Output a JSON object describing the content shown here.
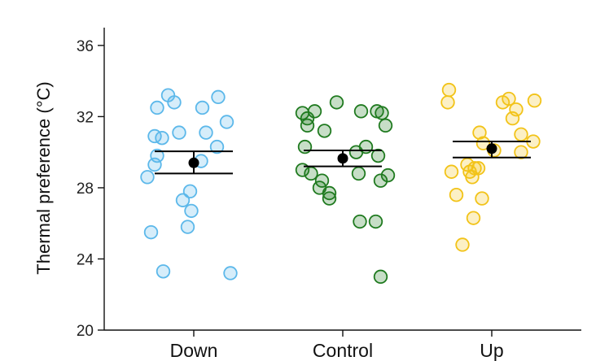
{
  "chart_data": {
    "type": "scatter",
    "ylabel": "Thermal preference (°C)",
    "ylim": [
      20,
      37
    ],
    "yticks": [
      20,
      24,
      28,
      32,
      36
    ],
    "categories": [
      "Down",
      "Control",
      "Up"
    ],
    "grid": false,
    "colors": {
      "Down": "#5cb8ea",
      "Control": "#1f7a1f",
      "Up": "#f2c318",
      "summary": "#000000"
    },
    "groups": [
      {
        "category": "Down",
        "points": [
          {
            "x": -0.3,
            "y": 32.5
          },
          {
            "x": -0.21,
            "y": 33.2
          },
          {
            "x": -0.16,
            "y": 32.8
          },
          {
            "x": 0.07,
            "y": 32.5
          },
          {
            "x": 0.2,
            "y": 33.1
          },
          {
            "x": -0.32,
            "y": 30.9
          },
          {
            "x": -0.26,
            "y": 30.8
          },
          {
            "x": -0.12,
            "y": 31.1
          },
          {
            "x": 0.1,
            "y": 31.1
          },
          {
            "x": 0.27,
            "y": 31.7
          },
          {
            "x": -0.3,
            "y": 29.8
          },
          {
            "x": -0.32,
            "y": 29.3
          },
          {
            "x": 0.06,
            "y": 29.5
          },
          {
            "x": 0.19,
            "y": 30.3
          },
          {
            "x": -0.38,
            "y": 28.6
          },
          {
            "x": -0.09,
            "y": 27.3
          },
          {
            "x": -0.03,
            "y": 27.8
          },
          {
            "x": -0.02,
            "y": 26.7
          },
          {
            "x": -0.05,
            "y": 25.8
          },
          {
            "x": -0.35,
            "y": 25.5
          },
          {
            "x": -0.25,
            "y": 23.3
          },
          {
            "x": 0.3,
            "y": 23.2
          }
        ],
        "mean": 29.4,
        "error_high": 30.05,
        "error_low": 28.8
      },
      {
        "category": "Control",
        "points": [
          {
            "x": -0.33,
            "y": 32.2
          },
          {
            "x": -0.29,
            "y": 31.9
          },
          {
            "x": -0.23,
            "y": 32.3
          },
          {
            "x": -0.29,
            "y": 31.5
          },
          {
            "x": -0.15,
            "y": 31.2
          },
          {
            "x": -0.05,
            "y": 32.8
          },
          {
            "x": 0.15,
            "y": 32.3
          },
          {
            "x": 0.28,
            "y": 32.3
          },
          {
            "x": 0.32,
            "y": 32.2
          },
          {
            "x": 0.35,
            "y": 31.5
          },
          {
            "x": -0.31,
            "y": 30.3
          },
          {
            "x": 0.11,
            "y": 30.0
          },
          {
            "x": 0.19,
            "y": 30.3
          },
          {
            "x": 0.29,
            "y": 29.8
          },
          {
            "x": -0.33,
            "y": 29.0
          },
          {
            "x": -0.26,
            "y": 28.8
          },
          {
            "x": -0.17,
            "y": 28.4
          },
          {
            "x": -0.19,
            "y": 28.0
          },
          {
            "x": -0.11,
            "y": 27.7
          },
          {
            "x": -0.11,
            "y": 27.4
          },
          {
            "x": 0.13,
            "y": 28.8
          },
          {
            "x": 0.31,
            "y": 28.4
          },
          {
            "x": 0.37,
            "y": 28.7
          },
          {
            "x": 0.14,
            "y": 26.1
          },
          {
            "x": 0.27,
            "y": 26.1
          },
          {
            "x": 0.31,
            "y": 23.0
          }
        ],
        "mean": 29.65,
        "error_high": 30.1,
        "error_low": 29.2
      },
      {
        "category": "Up",
        "points": [
          {
            "x": -0.35,
            "y": 33.5
          },
          {
            "x": -0.36,
            "y": 32.8
          },
          {
            "x": 0.09,
            "y": 32.8
          },
          {
            "x": 0.14,
            "y": 33.0
          },
          {
            "x": 0.35,
            "y": 32.9
          },
          {
            "x": 0.2,
            "y": 32.4
          },
          {
            "x": 0.17,
            "y": 31.9
          },
          {
            "x": -0.1,
            "y": 31.1
          },
          {
            "x": 0.24,
            "y": 31.0
          },
          {
            "x": 0.34,
            "y": 30.6
          },
          {
            "x": -0.07,
            "y": 30.5
          },
          {
            "x": 0.02,
            "y": 30.1
          },
          {
            "x": 0.24,
            "y": 30.0
          },
          {
            "x": -0.33,
            "y": 28.9
          },
          {
            "x": -0.2,
            "y": 29.3
          },
          {
            "x": -0.14,
            "y": 29.1
          },
          {
            "x": -0.18,
            "y": 28.9
          },
          {
            "x": -0.11,
            "y": 29.1
          },
          {
            "x": -0.16,
            "y": 28.6
          },
          {
            "x": -0.29,
            "y": 27.6
          },
          {
            "x": -0.08,
            "y": 27.4
          },
          {
            "x": -0.15,
            "y": 26.3
          },
          {
            "x": -0.24,
            "y": 24.8
          }
        ],
        "mean": 30.2,
        "error_high": 30.6,
        "error_low": 29.7
      }
    ]
  }
}
